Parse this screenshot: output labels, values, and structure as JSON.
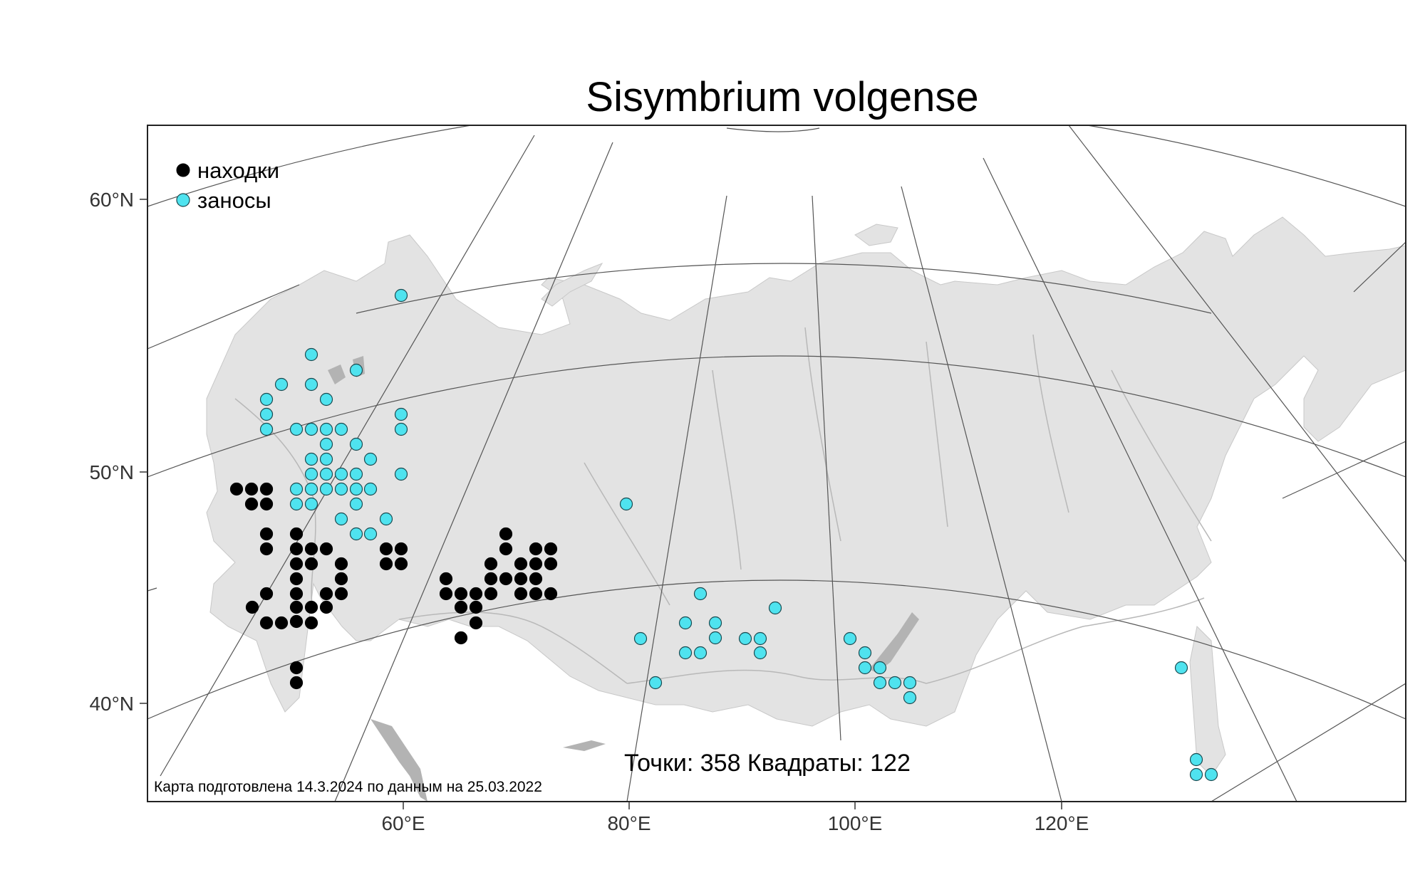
{
  "title": "Sisymbrium volgense",
  "legend": {
    "items": [
      {
        "label": "находки",
        "color": "#000000"
      },
      {
        "label": "заносы",
        "color": "#4fe3ef"
      }
    ]
  },
  "lat_labels": [
    "60°N",
    "50°N",
    "40°N"
  ],
  "lon_labels": [
    "60°E",
    "80°E",
    "100°E",
    "120°E"
  ],
  "stats": "Точки: 358 Квадраты: 122",
  "credit": "Карта подготовлена 14.3.2024 по данным на 25.03.2022",
  "colors": {
    "land": "#e3e3e3",
    "water": "#b3b3b3",
    "border": "#b5b5b5",
    "graticule": "#555555",
    "finds": "#000000",
    "introductions": "#4fe3ef"
  }
}
